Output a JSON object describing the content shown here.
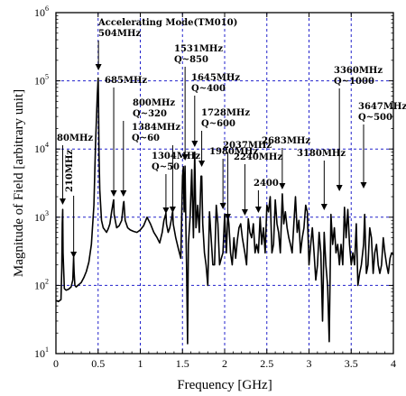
{
  "chart_data": {
    "type": "line",
    "xlabel": "Frequency [GHz]",
    "ylabel": "Magnitude of Field [arbitrary unit]",
    "xlim": [
      0,
      4
    ],
    "ylim": [
      10,
      1000000
    ],
    "y_scale": "log",
    "grid": true,
    "x_ticks": [
      {
        "v": 0,
        "label": "0"
      },
      {
        "v": 0.5,
        "label": "0.5"
      },
      {
        "v": 1,
        "label": "1"
      },
      {
        "v": 1.5,
        "label": "1.5"
      },
      {
        "v": 2,
        "label": "2"
      },
      {
        "v": 2.5,
        "label": "2.5"
      },
      {
        "v": 3,
        "label": "3"
      },
      {
        "v": 3.5,
        "label": "3.5"
      },
      {
        "v": 4,
        "label": "4"
      }
    ],
    "y_ticks": [
      {
        "v": 10,
        "base": "10",
        "exp": "1"
      },
      {
        "v": 100,
        "base": "10",
        "exp": "2"
      },
      {
        "v": 1000,
        "base": "10",
        "exp": "3"
      },
      {
        "v": 10000,
        "base": "10",
        "exp": "4"
      },
      {
        "v": 100000,
        "base": "10",
        "exp": "5"
      },
      {
        "v": 1000000,
        "base": "10",
        "exp": "6"
      }
    ],
    "series": [
      {
        "x": [
          0.0,
          0.03,
          0.06,
          0.07,
          0.075,
          0.08,
          0.085,
          0.1,
          0.12,
          0.15,
          0.18,
          0.2,
          0.21,
          0.215,
          0.225,
          0.24,
          0.26,
          0.28,
          0.3,
          0.33,
          0.36,
          0.39,
          0.42,
          0.45,
          0.47,
          0.49,
          0.5,
          0.505,
          0.51,
          0.52,
          0.54,
          0.56,
          0.58,
          0.6,
          0.62,
          0.64,
          0.66,
          0.68,
          0.685,
          0.69,
          0.72,
          0.75,
          0.78,
          0.8,
          0.805,
          0.82,
          0.85,
          0.88,
          0.92,
          0.96,
          1.0,
          1.04,
          1.08,
          1.12,
          1.16,
          1.2,
          1.23,
          1.26,
          1.28,
          1.3,
          1.304,
          1.31,
          1.33,
          1.35,
          1.37,
          1.38,
          1.384,
          1.39,
          1.42,
          1.45,
          1.48,
          1.5,
          1.51,
          1.52,
          1.531,
          1.54,
          1.55,
          1.56,
          1.57,
          1.59,
          1.61,
          1.63,
          1.645,
          1.66,
          1.68,
          1.7,
          1.72,
          1.728,
          1.74,
          1.76,
          1.78,
          1.8,
          1.82,
          1.84,
          1.86,
          1.88,
          1.9,
          1.92,
          1.94,
          1.96,
          1.98,
          2.0,
          2.02,
          2.037,
          2.05,
          2.07,
          2.09,
          2.11,
          2.13,
          2.15,
          2.17,
          2.19,
          2.21,
          2.24,
          2.26,
          2.28,
          2.3,
          2.32,
          2.34,
          2.36,
          2.38,
          2.4,
          2.42,
          2.44,
          2.46,
          2.48,
          2.5,
          2.52,
          2.54,
          2.56,
          2.58,
          2.6,
          2.62,
          2.64,
          2.66,
          2.683,
          2.7,
          2.72,
          2.74,
          2.76,
          2.78,
          2.8,
          2.82,
          2.84,
          2.86,
          2.88,
          2.9,
          2.92,
          2.94,
          2.96,
          2.98,
          3.0,
          3.02,
          3.04,
          3.06,
          3.08,
          3.1,
          3.12,
          3.14,
          3.16,
          3.18,
          3.2,
          3.22,
          3.24,
          3.26,
          3.28,
          3.3,
          3.32,
          3.34,
          3.36,
          3.38,
          3.4,
          3.42,
          3.44,
          3.46,
          3.48,
          3.5,
          3.52,
          3.54,
          3.56,
          3.58,
          3.6,
          3.62,
          3.647,
          3.66,
          3.68,
          3.7,
          3.72,
          3.74,
          3.76,
          3.78,
          3.8,
          3.82,
          3.84,
          3.86,
          3.88,
          3.9,
          3.92,
          3.94,
          3.96,
          3.98,
          4.0
        ],
        "y": [
          60,
          58,
          62,
          180,
          800,
          1300,
          300,
          90,
          85,
          88,
          95,
          120,
          260,
          160,
          100,
          95,
          100,
          105,
          110,
          130,
          160,
          220,
          400,
          1500,
          12000,
          60000,
          110000,
          50000,
          9000,
          2500,
          900,
          700,
          650,
          600,
          680,
          800,
          1200,
          1700,
          1800,
          1100,
          700,
          750,
          900,
          1600,
          1700,
          900,
          700,
          650,
          620,
          600,
          650,
          750,
          1000,
          800,
          600,
          500,
          420,
          600,
          900,
          1100,
          1150,
          800,
          600,
          700,
          950,
          1150,
          1200,
          800,
          500,
          350,
          250,
          4000,
          5500,
          1200,
          5600,
          800,
          150,
          14,
          400,
          1000,
          5000,
          500,
          9000,
          700,
          1500,
          600,
          4000,
          4000,
          800,
          300,
          200,
          100,
          1200,
          500,
          200,
          200,
          1500,
          800,
          200,
          250,
          300,
          1100,
          300,
          1100,
          800,
          300,
          200,
          500,
          250,
          450,
          700,
          800,
          500,
          300,
          200,
          950,
          600,
          500,
          800,
          300,
          400,
          300,
          1000,
          400,
          700,
          300,
          1500,
          1200,
          2000,
          300,
          400,
          1800,
          800,
          600,
          300,
          2200,
          800,
          1200,
          700,
          500,
          400,
          300,
          800,
          2000,
          600,
          900,
          300,
          500,
          700,
          1500,
          1200,
          200,
          400,
          700,
          300,
          120,
          200,
          600,
          300,
          30,
          600,
          200,
          100,
          15,
          1100,
          400,
          700,
          300,
          400,
          200,
          400,
          200,
          1400,
          500,
          1300,
          400,
          200,
          300,
          200,
          800,
          100,
          150,
          200,
          400,
          1100,
          150,
          200,
          700,
          500,
          150,
          300,
          400,
          200,
          150,
          200,
          500,
          300,
          200,
          150,
          250,
          300,
          280
        ]
      }
    ],
    "annotations": [
      {
        "lines": [
          "80MHz"
        ],
        "x": 0.08,
        "y": 1300
      },
      {
        "lines": [
          "210MHz"
        ],
        "x": 0.21,
        "y": 260
      },
      {
        "lines": [
          "Accelerating  Mode(TM010)",
          "504MHz"
        ],
        "x": 0.504,
        "y": 110000
      },
      {
        "lines": [
          "685MHz"
        ],
        "x": 0.685,
        "y": 1800
      },
      {
        "lines": [
          "800MHz",
          "Q~320"
        ],
        "x": 0.8,
        "y": 1600
      },
      {
        "lines": [
          "1304MHz",
          "Q~50"
        ],
        "x": 1.304,
        "y": 1150
      },
      {
        "lines": [
          "1384MHz",
          "Q~60"
        ],
        "x": 1.384,
        "y": 1200
      },
      {
        "lines": [
          "1531MHz",
          "Q~850"
        ],
        "x": 1.531,
        "y": 5600
      },
      {
        "lines": [
          "1645MHz",
          "Q~400"
        ],
        "x": 1.645,
        "y": 9000
      },
      {
        "lines": [
          "1728MHz",
          "Q~600"
        ],
        "x": 1.728,
        "y": 4000
      },
      {
        "lines": [
          "1980MHz"
        ],
        "x": 1.98,
        "y": 1100
      },
      {
        "lines": [
          "2037MHz"
        ],
        "x": 2.037,
        "y": 800
      },
      {
        "lines": [
          "2240MHz"
        ],
        "x": 2.24,
        "y": 950
      },
      {
        "lines": [
          "2400"
        ],
        "x": 2.4,
        "y": 1000
      },
      {
        "lines": [
          "2683MHz"
        ],
        "x": 2.683,
        "y": 2200
      },
      {
        "lines": [
          "3180MHz"
        ],
        "x": 3.18,
        "y": 1000
      },
      {
        "lines": [
          "3360MHz",
          "Q~1000"
        ],
        "x": 3.36,
        "y": 1400
      },
      {
        "lines": [
          "3647MHz",
          "Q~500"
        ],
        "x": 3.647,
        "y": 1100
      }
    ]
  }
}
